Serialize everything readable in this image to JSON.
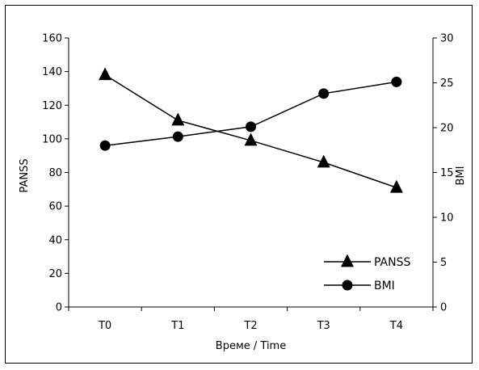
{
  "chart_data": {
    "type": "line",
    "title": "",
    "xlabel": "Време / Time",
    "ylabel_left": "PANSS",
    "ylabel_right": "BMI",
    "categories": [
      "T0",
      "T1",
      "T2",
      "T3",
      "T4"
    ],
    "ylim_left": [
      0,
      160
    ],
    "ylim_right": [
      0,
      30
    ],
    "yticks_left": [
      0,
      20,
      40,
      60,
      80,
      100,
      120,
      140,
      160
    ],
    "yticks_right": [
      0,
      5,
      10,
      15,
      20,
      25,
      30
    ],
    "grid": false,
    "legend_position": "bottom-right",
    "series": [
      {
        "name": "PANSS",
        "axis": "left",
        "marker": "triangle",
        "values": [
          138,
          111,
          99,
          86,
          71
        ]
      },
      {
        "name": "BMI",
        "axis": "right",
        "marker": "circle",
        "values": [
          18.0,
          19.0,
          20.1,
          23.8,
          25.1
        ]
      }
    ]
  }
}
